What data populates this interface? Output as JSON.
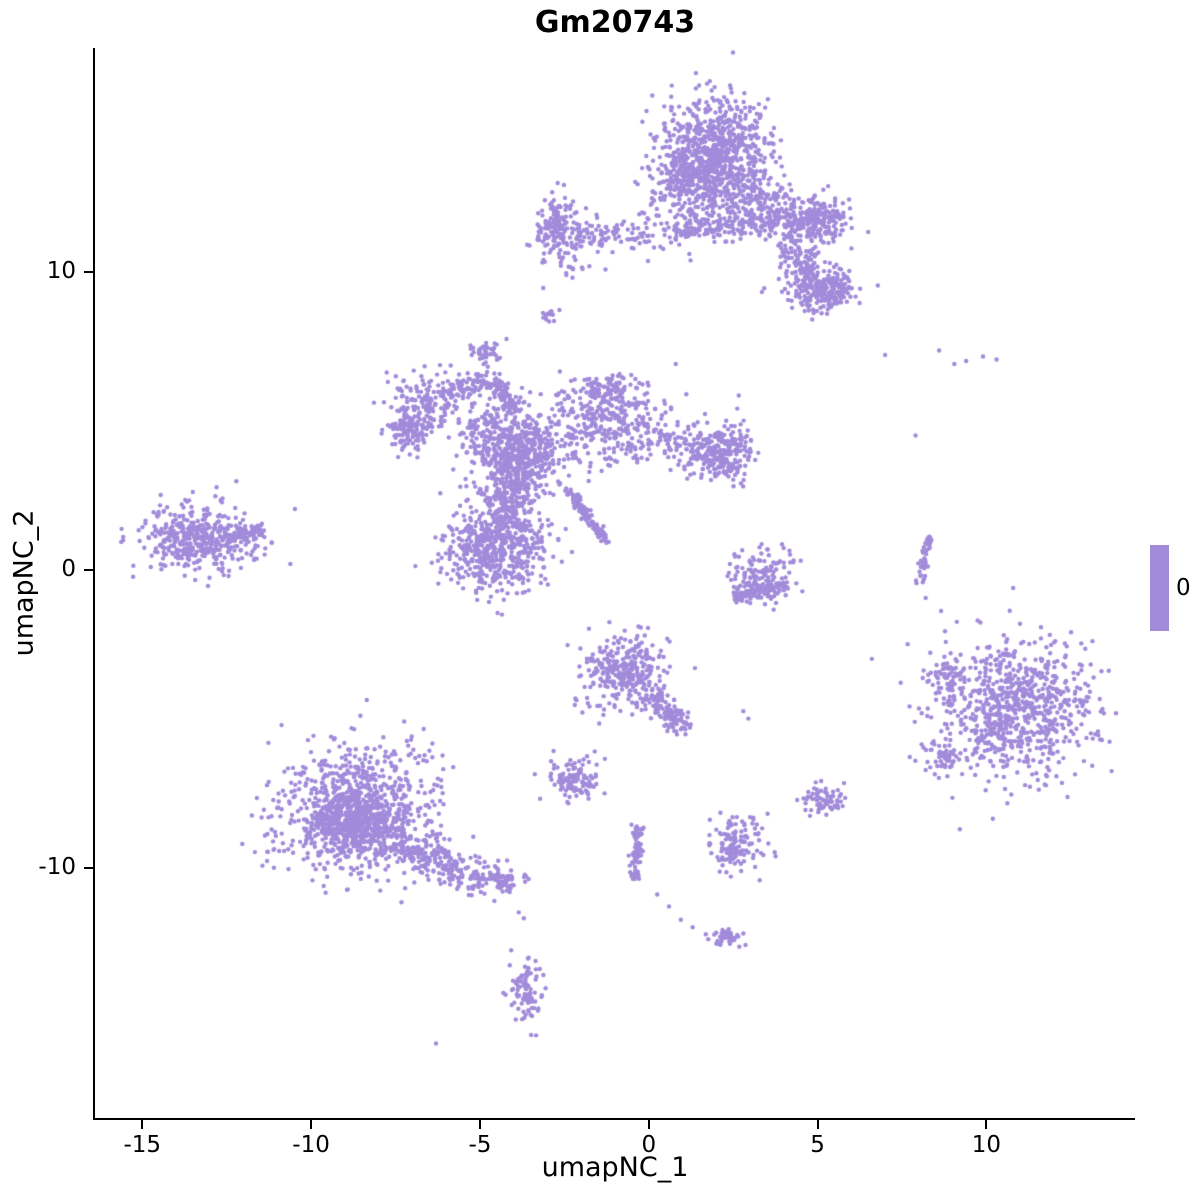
{
  "chart_data": {
    "type": "scatter",
    "title": "Gm20743",
    "xlabel": "umapNC_1",
    "ylabel": "umapNC_2",
    "x_ticks": [
      -15,
      -10,
      -5,
      0,
      5,
      10
    ],
    "y_ticks": [
      -10,
      0,
      10
    ],
    "xlim": [
      -16.4,
      14.4
    ],
    "ylim": [
      -18.4,
      17.5
    ],
    "grid": false,
    "legend": {
      "label": "0",
      "color": "#A28BDA",
      "position": "right"
    },
    "point_color": "#A28BDA",
    "point_radius": 2.2,
    "seed": 20743,
    "blobs": [
      [
        1.9,
        14.0,
        0.85,
        0.95,
        650
      ],
      [
        1.2,
        12.9,
        0.6,
        0.6,
        220
      ],
      [
        2.6,
        13.3,
        0.5,
        0.8,
        150
      ],
      [
        5.1,
        11.7,
        0.45,
        0.35,
        200
      ],
      [
        5.05,
        9.35,
        0.5,
        0.38,
        190
      ],
      [
        5.6,
        9.6,
        0.25,
        0.2,
        40
      ],
      [
        -2.75,
        11.5,
        0.32,
        0.45,
        150
      ],
      [
        -2.4,
        10.4,
        0.45,
        0.4,
        30
      ],
      [
        -4.8,
        7.35,
        0.22,
        0.2,
        45
      ],
      [
        -2.95,
        8.55,
        0.15,
        0.12,
        14
      ],
      [
        -6.6,
        5.6,
        0.55,
        0.5,
        170
      ],
      [
        -7.1,
        4.6,
        0.3,
        0.35,
        110
      ],
      [
        -4.9,
        4.7,
        0.5,
        0.45,
        110
      ],
      [
        -3.8,
        3.8,
        0.55,
        0.65,
        520
      ],
      [
        -1.2,
        4.9,
        1.0,
        0.75,
        360
      ],
      [
        -1.3,
        6.05,
        0.3,
        0.25,
        80
      ],
      [
        2.1,
        3.9,
        0.5,
        0.48,
        270
      ],
      [
        -4.4,
        0.95,
        0.75,
        0.8,
        520
      ],
      [
        -13.3,
        1.05,
        0.8,
        0.5,
        360
      ],
      [
        -13.3,
        1.0,
        1.1,
        0.7,
        70
      ],
      [
        3.3,
        -0.15,
        0.55,
        0.5,
        140
      ],
      [
        10.9,
        -4.7,
        1.15,
        1.15,
        820
      ],
      [
        8.8,
        -3.6,
        0.3,
        0.3,
        55
      ],
      [
        8.75,
        -6.35,
        0.35,
        0.3,
        50
      ],
      [
        -0.7,
        -3.4,
        0.62,
        0.62,
        320
      ],
      [
        -2.2,
        -7.0,
        0.35,
        0.3,
        110
      ],
      [
        5.2,
        -7.7,
        0.3,
        0.25,
        70
      ],
      [
        2.6,
        -9.2,
        0.4,
        0.45,
        140
      ],
      [
        -8.6,
        -8.2,
        1.1,
        1.0,
        850
      ],
      [
        -8.9,
        -8.5,
        0.55,
        0.5,
        280
      ],
      [
        -4.4,
        -10.4,
        0.3,
        0.25,
        80
      ],
      [
        -8.2,
        -6.3,
        0.9,
        0.5,
        70
      ],
      [
        -3.65,
        -14.2,
        0.25,
        0.55,
        90
      ],
      [
        2.3,
        -12.35,
        0.22,
        0.18,
        55
      ],
      [
        -4.15,
        2.5,
        0.35,
        0.4,
        90
      ],
      [
        -5.0,
        0.2,
        0.5,
        0.45,
        90
      ]
    ],
    "streaks": [
      [
        0.8,
        11.35,
        4.3,
        11.75,
        0.22,
        190
      ],
      [
        4.1,
        11.2,
        4.85,
        9.7,
        0.28,
        130
      ],
      [
        2.8,
        12.7,
        4.6,
        11.9,
        0.35,
        110
      ],
      [
        -2.1,
        11.25,
        0.6,
        11.3,
        0.28,
        110
      ],
      [
        -6.0,
        5.95,
        -4.6,
        6.4,
        0.18,
        80
      ],
      [
        -4.55,
        6.35,
        -3.95,
        5.3,
        0.16,
        85
      ],
      [
        -2.4,
        2.7,
        -1.3,
        1.0,
        0.07,
        120
      ],
      [
        -12.2,
        1.2,
        -11.35,
        1.3,
        0.12,
        55
      ],
      [
        2.5,
        -0.9,
        4.15,
        -0.5,
        0.12,
        75
      ],
      [
        8.05,
        -0.35,
        8.3,
        1.15,
        0.06,
        45
      ],
      [
        0.0,
        -4.2,
        1.1,
        -5.3,
        0.18,
        110
      ],
      [
        0.0,
        4.4,
        1.7,
        4.1,
        0.3,
        60
      ],
      [
        -0.3,
        -8.6,
        -0.45,
        -10.4,
        0.08,
        75
      ],
      [
        -7.2,
        -9.3,
        -5.0,
        -10.35,
        0.3,
        230
      ]
    ],
    "singles": [
      [
        7.0,
        7.2
      ],
      [
        8.6,
        7.35
      ],
      [
        9.4,
        7.0
      ],
      [
        9.9,
        7.15
      ],
      [
        9.05,
        6.9
      ],
      [
        7.9,
        4.5
      ],
      [
        10.3,
        7.05
      ],
      [
        0.8,
        6.9
      ],
      [
        -3.6,
        10.9
      ],
      [
        8.2,
        -0.95
      ],
      [
        2.8,
        -4.75
      ],
      [
        2.95,
        -5.0
      ],
      [
        -3.85,
        -11.5
      ],
      [
        -3.7,
        -11.7
      ],
      [
        -6.3,
        -15.9
      ],
      [
        0.25,
        -10.9
      ],
      [
        0.6,
        -11.3
      ],
      [
        0.95,
        -11.75
      ],
      [
        1.3,
        -12.0
      ],
      [
        -1.3,
        -6.35
      ],
      [
        -1.6,
        -6.1
      ]
    ]
  }
}
